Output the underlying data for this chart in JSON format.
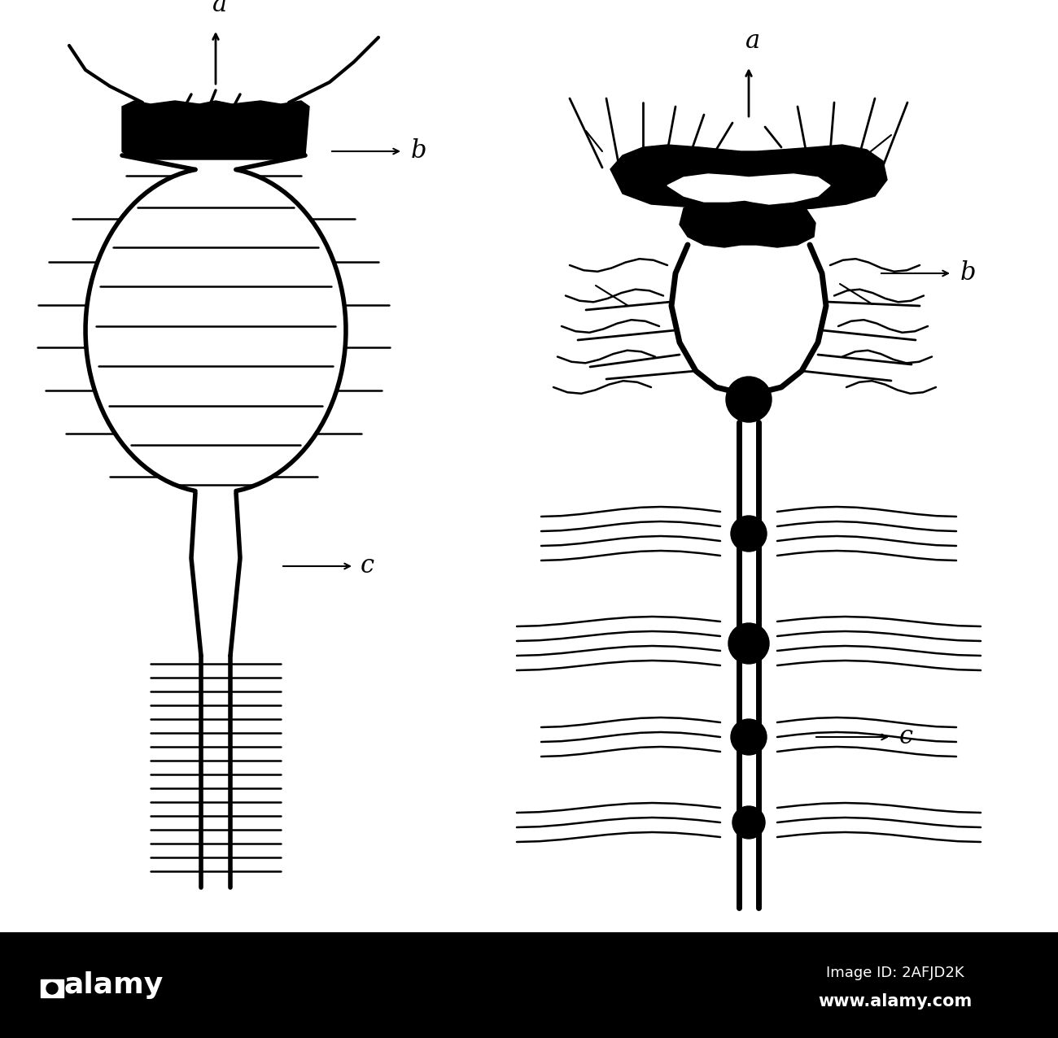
{
  "background_color": "#ffffff",
  "fig_width": 13.0,
  "fig_height": 12.76,
  "dpi": 100,
  "label_a_left": "a",
  "label_b_left": "b",
  "label_c_left": "c",
  "label_a_right": "a",
  "label_b_right": "b",
  "label_c_right": "c",
  "line_color": "#000000",
  "alamy_bg": "#000000",
  "alamy_text_color": "#ffffff"
}
